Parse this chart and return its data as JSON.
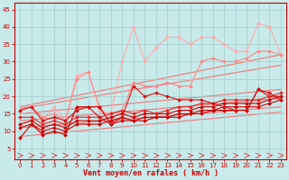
{
  "bg_color": "#c8eaea",
  "grid_color": "#a0cccc",
  "xlabel": "Vent moyen/en rafales ( km/h )",
  "xlim": [
    -0.5,
    23.5
  ],
  "ylim": [
    2,
    47
  ],
  "yticks": [
    5,
    10,
    15,
    20,
    25,
    30,
    35,
    40,
    45
  ],
  "xticks": [
    0,
    1,
    2,
    3,
    4,
    5,
    6,
    7,
    8,
    9,
    10,
    11,
    12,
    13,
    14,
    15,
    16,
    17,
    18,
    19,
    20,
    21,
    22,
    23
  ],
  "trend_lines": [
    {
      "x": [
        0,
        23
      ],
      "y": [
        8.5,
        15.5
      ],
      "color": "#f08080",
      "lw": 0.9
    },
    {
      "x": [
        0,
        23
      ],
      "y": [
        11,
        17
      ],
      "color": "#f08080",
      "lw": 0.9
    },
    {
      "x": [
        0,
        23
      ],
      "y": [
        13,
        19.5
      ],
      "color": "#f08080",
      "lw": 0.9
    },
    {
      "x": [
        0,
        23
      ],
      "y": [
        15,
        22
      ],
      "color": "#f08080",
      "lw": 0.9
    },
    {
      "x": [
        0,
        23
      ],
      "y": [
        16.5,
        29
      ],
      "color": "#f08080",
      "lw": 0.9
    },
    {
      "x": [
        0,
        23
      ],
      "y": [
        17,
        32
      ],
      "color": "#f08080",
      "lw": 0.9
    }
  ],
  "pink_line1": {
    "x": [
      0,
      1,
      2,
      3,
      4,
      5,
      6,
      7,
      8,
      9,
      10,
      11,
      12,
      13,
      14,
      15,
      16,
      17,
      18,
      19,
      20,
      21,
      22,
      23
    ],
    "y": [
      16,
      17,
      13,
      17,
      13,
      26,
      27,
      16,
      15,
      30,
      40,
      30,
      34,
      37,
      37,
      35,
      37,
      37,
      35,
      33,
      33,
      41,
      40,
      32
    ],
    "color": "#ffaaaa",
    "lw": 0.8
  },
  "pink_line2": {
    "x": [
      0,
      1,
      2,
      3,
      4,
      5,
      6,
      7,
      8,
      9,
      10,
      11,
      12,
      13,
      14,
      15,
      16,
      17,
      18,
      19,
      20,
      21,
      22,
      23
    ],
    "y": [
      16,
      17,
      14,
      15,
      13,
      25,
      27,
      17,
      13,
      16,
      24,
      23,
      23,
      24,
      23,
      23,
      30,
      31,
      30,
      30,
      31,
      33,
      33,
      32
    ],
    "color": "#ff8888",
    "lw": 0.8
  },
  "dark_line1": {
    "x": [
      0,
      1,
      2,
      3,
      4,
      5,
      6,
      7,
      8,
      9,
      10,
      11,
      12,
      13,
      14,
      15,
      16,
      17,
      18,
      19,
      20,
      21,
      22,
      23
    ],
    "y": [
      8,
      12,
      9,
      10,
      9,
      17,
      17,
      17,
      12,
      13,
      13,
      13,
      14,
      14,
      14,
      15,
      15,
      16,
      16,
      16,
      16,
      22,
      20,
      20
    ],
    "color": "#cc0000",
    "lw": 0.8
  },
  "dark_line2": {
    "x": [
      0,
      1,
      2,
      3,
      4,
      5,
      6,
      7,
      8,
      9,
      10,
      11,
      12,
      13,
      14,
      15,
      16,
      17,
      18,
      19,
      20,
      21,
      22,
      23
    ],
    "y": [
      11,
      12,
      10,
      11,
      10,
      12,
      12,
      12,
      13,
      14,
      13,
      14,
      14,
      14,
      15,
      15,
      16,
      16,
      17,
      17,
      17,
      17,
      18,
      19
    ],
    "color": "#cc0000",
    "lw": 0.8
  },
  "dark_line3": {
    "x": [
      0,
      1,
      2,
      3,
      4,
      5,
      6,
      7,
      8,
      9,
      10,
      11,
      12,
      13,
      14,
      15,
      16,
      17,
      18,
      19,
      20,
      21,
      22,
      23
    ],
    "y": [
      12,
      13,
      11,
      12,
      11,
      13,
      13,
      13,
      14,
      15,
      14,
      15,
      15,
      15,
      16,
      16,
      17,
      17,
      18,
      18,
      18,
      18,
      19,
      20
    ],
    "color": "#cc0000",
    "lw": 0.8
  },
  "dark_line4": {
    "x": [
      0,
      1,
      2,
      3,
      4,
      5,
      6,
      7,
      8,
      9,
      10,
      11,
      12,
      13,
      14,
      15,
      16,
      17,
      18,
      19,
      20,
      21,
      22,
      23
    ],
    "y": [
      14,
      14,
      12,
      13,
      12,
      14,
      14,
      14,
      15,
      16,
      15,
      16,
      15,
      16,
      17,
      17,
      18,
      18,
      19,
      19,
      19,
      19,
      20,
      21
    ],
    "color": "#ee2222",
    "lw": 0.8
  },
  "dark_line5": {
    "x": [
      0,
      1,
      2,
      3,
      4,
      5,
      6,
      7,
      8,
      9,
      10,
      11,
      12,
      13,
      14,
      15,
      16,
      17,
      18,
      19,
      20,
      21,
      22,
      23
    ],
    "y": [
      16,
      17,
      13,
      14,
      13,
      16,
      17,
      14,
      12,
      14,
      23,
      20,
      21,
      20,
      19,
      19,
      19,
      18,
      17,
      16,
      16,
      22,
      21,
      19
    ],
    "color": "#dd1111",
    "lw": 0.8
  },
  "marker_style": "D",
  "marker_size": 2.0,
  "tick_color": "#cc0000",
  "tick_fontsize": 5,
  "xlabel_fontsize": 6,
  "xlabel_color": "#cc0000",
  "spine_color": "#cc0000"
}
